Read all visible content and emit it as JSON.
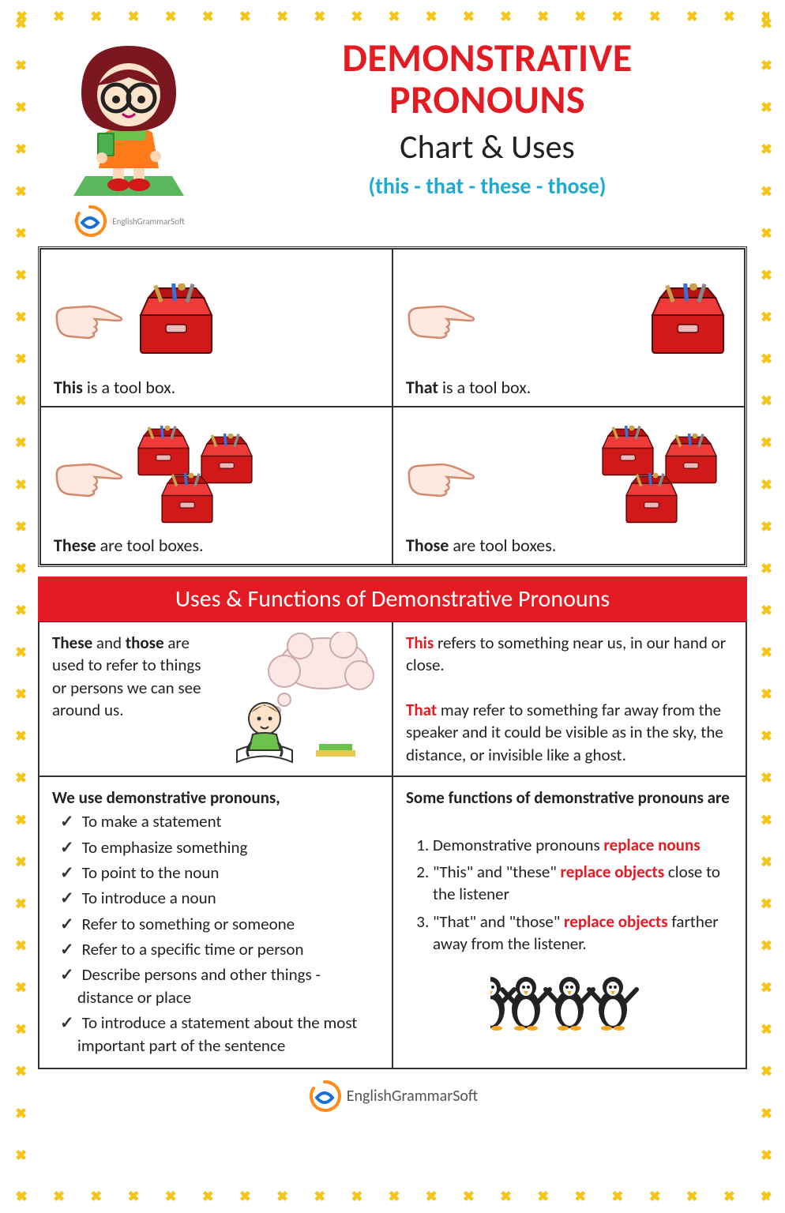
{
  "colors": {
    "accent_red": "#e31b23",
    "accent_cyan": "#1faad1",
    "border_yellow": "#f5c518",
    "text": "#222222",
    "toolbox_red": "#d11919",
    "toolbox_dark": "#9a0e0e",
    "hand_fill": "#fde9e0",
    "hand_stroke": "#d18a6e"
  },
  "header": {
    "title_line1": "DEMONSTRATIVE",
    "title_line2": "PRONOUNS",
    "subtitle": "Chart & Uses",
    "pronouns": "(this - that - these - those)",
    "brand": "EnglishGrammarSoft"
  },
  "quadrants": [
    {
      "word": "This",
      "rest": " is a tool box."
    },
    {
      "word": "That",
      "rest": " is a tool box."
    },
    {
      "word": "These",
      "rest": " are tool boxes."
    },
    {
      "word": "Those",
      "rest": " are tool boxes."
    }
  ],
  "uses": {
    "title": "Uses & Functions of Demonstrative Pronouns",
    "top_left": {
      "lead_a": "These",
      "mid": " and ",
      "lead_b": "those",
      "rest": " are used to refer to things or persons we can see around us."
    },
    "top_right": {
      "p1_word": "This",
      "p1_rest": " refers to something near us, in our hand or close.",
      "p2_word": "That",
      "p2_rest": " may refer to something far away from the speaker and it could be visible as in the sky, the distance, or invisible like a ghost."
    },
    "bottom_left": {
      "heading": "We use demonstrative pronouns,",
      "items": [
        "To make a statement",
        "To emphasize something",
        "To point to the noun",
        "To introduce a noun",
        "Refer to something or someone",
        "Refer to a specific time or person",
        "Describe persons and other things - distance or place",
        "To introduce a statement about the most important part of the sentence"
      ]
    },
    "bottom_right": {
      "heading": "Some functions of demonstrative pronouns are",
      "items": [
        {
          "pre": "Demonstrative pronouns ",
          "em": "replace nouns",
          "post": ""
        },
        {
          "pre": "\"This\" and \"these\" ",
          "em": "replace objects",
          "post": " close to the listener"
        },
        {
          "pre": "\"That\" and \"those\" ",
          "em": "replace objects",
          "post": " farther away from the listener."
        }
      ]
    }
  },
  "footer_brand": "EnglishGrammarSoft"
}
